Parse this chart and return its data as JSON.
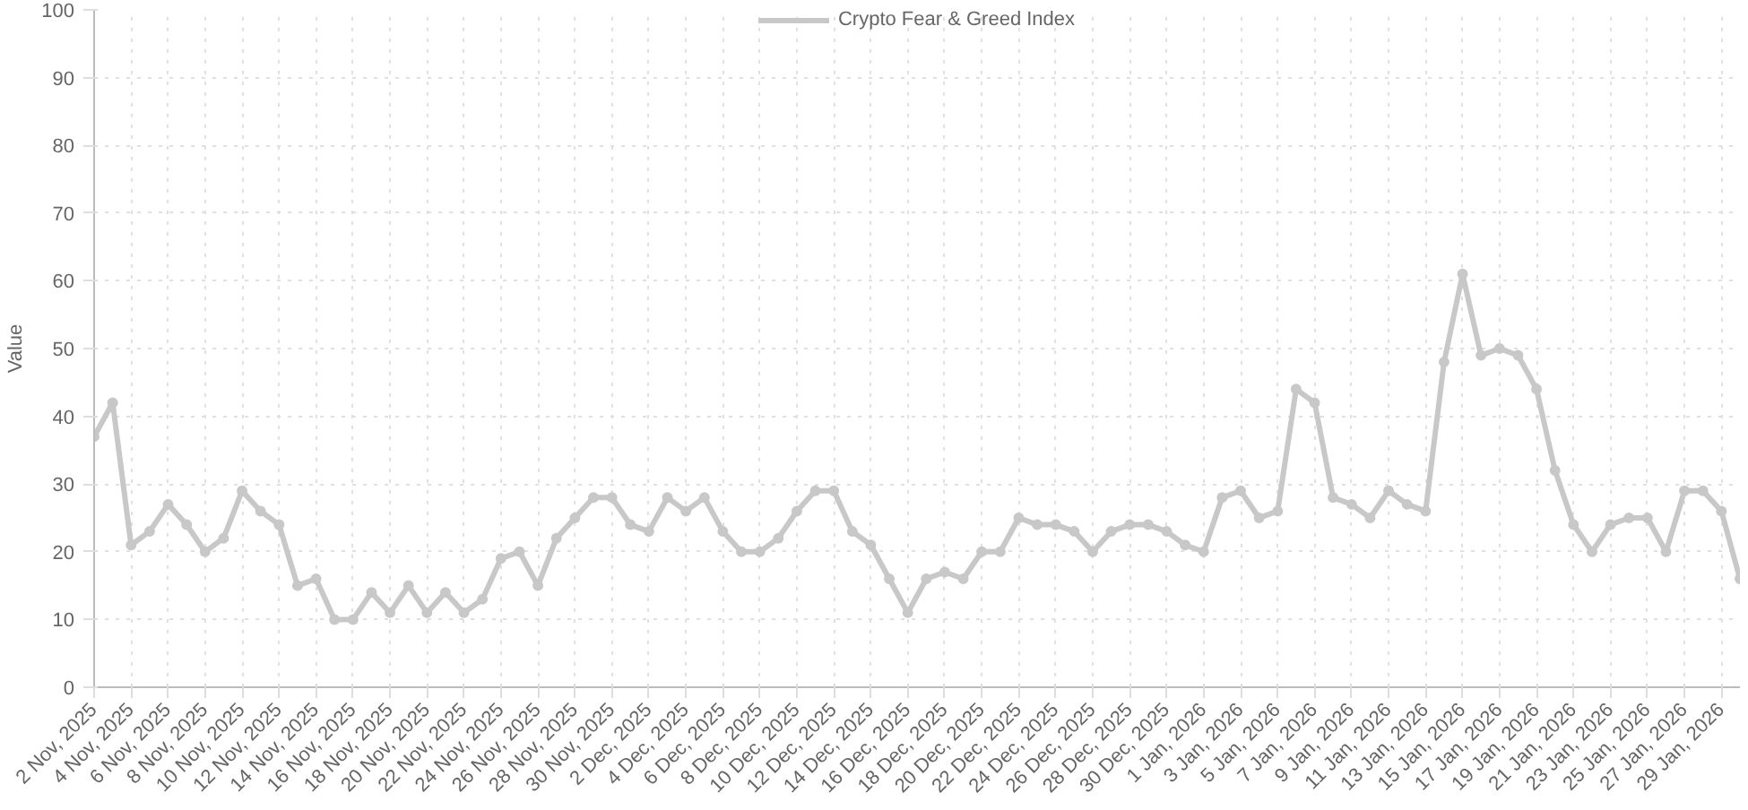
{
  "chart_data": {
    "type": "line",
    "ylabel": "Value",
    "x": [
      "2025-11-02",
      "2025-11-03",
      "2025-11-04",
      "2025-11-05",
      "2025-11-06",
      "2025-11-07",
      "2025-11-08",
      "2025-11-09",
      "2025-11-10",
      "2025-11-11",
      "2025-11-12",
      "2025-11-13",
      "2025-11-14",
      "2025-11-15",
      "2025-11-16",
      "2025-11-17",
      "2025-11-18",
      "2025-11-19",
      "2025-11-20",
      "2025-11-21",
      "2025-11-22",
      "2025-11-23",
      "2025-11-24",
      "2025-11-25",
      "2025-11-26",
      "2025-11-27",
      "2025-11-28",
      "2025-11-29",
      "2025-11-30",
      "2025-12-01",
      "2025-12-02",
      "2025-12-03",
      "2025-12-04",
      "2025-12-05",
      "2025-12-06",
      "2025-12-07",
      "2025-12-08",
      "2025-12-09",
      "2025-12-10",
      "2025-12-11",
      "2025-12-12",
      "2025-12-13",
      "2025-12-14",
      "2025-12-15",
      "2025-12-16",
      "2025-12-17",
      "2025-12-18",
      "2025-12-19",
      "2025-12-20",
      "2025-12-21",
      "2025-12-22",
      "2025-12-23",
      "2025-12-24",
      "2025-12-25",
      "2025-12-26",
      "2025-12-27",
      "2025-12-28",
      "2025-12-29",
      "2025-12-30",
      "2025-12-31",
      "2026-01-01",
      "2026-01-02",
      "2026-01-03",
      "2026-01-04",
      "2026-01-05",
      "2026-01-06",
      "2026-01-07",
      "2026-01-08",
      "2026-01-09",
      "2026-01-10",
      "2026-01-11",
      "2026-01-12",
      "2026-01-13",
      "2026-01-14",
      "2026-01-15",
      "2026-01-16",
      "2026-01-17",
      "2026-01-18",
      "2026-01-19",
      "2026-01-20",
      "2026-01-21",
      "2026-01-22",
      "2026-01-23",
      "2026-01-24",
      "2026-01-25",
      "2026-01-26",
      "2026-01-27",
      "2026-01-28",
      "2026-01-29",
      "2026-01-30"
    ],
    "series": [
      {
        "name": "Crypto Fear & Greed Index",
        "color": "#c8c8c8",
        "values": [
          37,
          42,
          21,
          23,
          27,
          24,
          20,
          22,
          29,
          26,
          24,
          15,
          16,
          10,
          10,
          14,
          11,
          15,
          11,
          14,
          11,
          13,
          19,
          20,
          15,
          22,
          25,
          28,
          28,
          24,
          23,
          28,
          26,
          28,
          23,
          20,
          20,
          22,
          26,
          29,
          29,
          23,
          21,
          16,
          11,
          16,
          17,
          16,
          20,
          20,
          25,
          24,
          24,
          23,
          20,
          23,
          24,
          24,
          23,
          21,
          20,
          28,
          29,
          25,
          26,
          44,
          42,
          28,
          27,
          25,
          29,
          27,
          26,
          48,
          61,
          49,
          50,
          49,
          44,
          32,
          24,
          20,
          24,
          25,
          25,
          20,
          29,
          29,
          26,
          16
        ]
      }
    ],
    "xlim": [
      "2025-11-02",
      "2026-01-30"
    ],
    "xticks": [
      {
        "value": "2025-11-02",
        "label": "2 Nov, 2025"
      },
      {
        "value": "2025-11-04",
        "label": "4 Nov, 2025"
      },
      {
        "value": "2025-11-06",
        "label": "6 Nov, 2025"
      },
      {
        "value": "2025-11-08",
        "label": "8 Nov, 2025"
      },
      {
        "value": "2025-11-10",
        "label": "10 Nov, 2025"
      },
      {
        "value": "2025-11-12",
        "label": "12 Nov, 2025"
      },
      {
        "value": "2025-11-14",
        "label": "14 Nov, 2025"
      },
      {
        "value": "2025-11-16",
        "label": "16 Nov, 2025"
      },
      {
        "value": "2025-11-18",
        "label": "18 Nov, 2025"
      },
      {
        "value": "2025-11-20",
        "label": "20 Nov, 2025"
      },
      {
        "value": "2025-11-22",
        "label": "22 Nov, 2025"
      },
      {
        "value": "2025-11-24",
        "label": "24 Nov, 2025"
      },
      {
        "value": "2025-11-26",
        "label": "26 Nov, 2025"
      },
      {
        "value": "2025-11-28",
        "label": "28 Nov, 2025"
      },
      {
        "value": "2025-11-30",
        "label": "30 Nov, 2025"
      },
      {
        "value": "2025-12-02",
        "label": "2 Dec, 2025"
      },
      {
        "value": "2025-12-04",
        "label": "4 Dec, 2025"
      },
      {
        "value": "2025-12-06",
        "label": "6 Dec, 2025"
      },
      {
        "value": "2025-12-08",
        "label": "8 Dec, 2025"
      },
      {
        "value": "2025-12-10",
        "label": "10 Dec, 2025"
      },
      {
        "value": "2025-12-12",
        "label": "12 Dec, 2025"
      },
      {
        "value": "2025-12-14",
        "label": "14 Dec, 2025"
      },
      {
        "value": "2025-12-16",
        "label": "16 Dec, 2025"
      },
      {
        "value": "2025-12-18",
        "label": "18 Dec, 2025"
      },
      {
        "value": "2025-12-20",
        "label": "20 Dec, 2025"
      },
      {
        "value": "2025-12-22",
        "label": "22 Dec, 2025"
      },
      {
        "value": "2025-12-24",
        "label": "24 Dec, 2025"
      },
      {
        "value": "2025-12-26",
        "label": "26 Dec, 2025"
      },
      {
        "value": "2025-12-28",
        "label": "28 Dec, 2025"
      },
      {
        "value": "2025-12-30",
        "label": "30 Dec, 2025"
      },
      {
        "value": "2026-01-01",
        "label": "1 Jan, 2026"
      },
      {
        "value": "2026-01-03",
        "label": "3 Jan, 2026"
      },
      {
        "value": "2026-01-05",
        "label": "5 Jan, 2026"
      },
      {
        "value": "2026-01-07",
        "label": "7 Jan, 2026"
      },
      {
        "value": "2026-01-09",
        "label": "9 Jan, 2026"
      },
      {
        "value": "2026-01-11",
        "label": "11 Jan, 2026"
      },
      {
        "value": "2026-01-13",
        "label": "13 Jan, 2026"
      },
      {
        "value": "2026-01-15",
        "label": "15 Jan, 2026"
      },
      {
        "value": "2026-01-17",
        "label": "17 Jan, 2026"
      },
      {
        "value": "2026-01-19",
        "label": "19 Jan, 2026"
      },
      {
        "value": "2026-01-21",
        "label": "21 Jan, 2026"
      },
      {
        "value": "2026-01-23",
        "label": "23 Jan, 2026"
      },
      {
        "value": "2026-01-25",
        "label": "25 Jan, 2026"
      },
      {
        "value": "2026-01-27",
        "label": "27 Jan, 2026"
      },
      {
        "value": "2026-01-29",
        "label": "29 Jan, 2026"
      }
    ],
    "ylim": [
      0,
      100
    ],
    "yticks": [
      0,
      10,
      20,
      30,
      40,
      50,
      60,
      70,
      80,
      90,
      100
    ],
    "grid": true,
    "legend": "top",
    "marker": "circle",
    "line_style": "solid"
  }
}
